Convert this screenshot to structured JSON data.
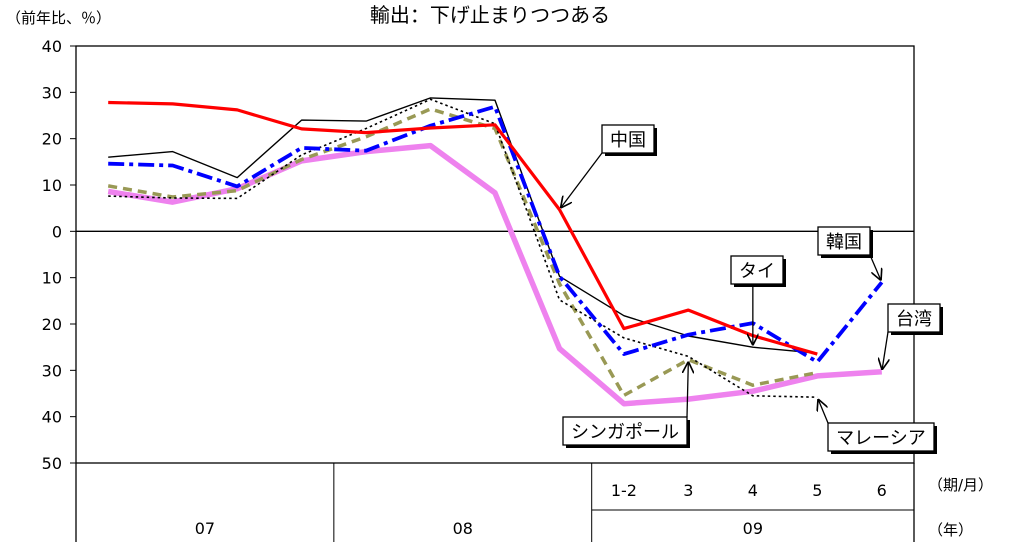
{
  "chart_data": {
    "type": "line",
    "title": "輸出：下げ止まりつつある",
    "ylabel": "（前年比、％）",
    "ylim": [
      -50,
      40
    ],
    "y_ticks": [
      {
        "value": 40,
        "label": "40"
      },
      {
        "value": 30,
        "label": "30"
      },
      {
        "value": 20,
        "label": "20"
      },
      {
        "value": 10,
        "label": "10"
      },
      {
        "value": 0,
        "label": "0"
      },
      {
        "value": -10,
        "label": "10"
      },
      {
        "value": -20,
        "label": "20"
      },
      {
        "value": -30,
        "label": "30"
      },
      {
        "value": -40,
        "label": "40"
      },
      {
        "value": -50,
        "label": "50"
      }
    ],
    "x_period_label": "（期/月）",
    "x_year_label": "（年）",
    "x": [
      "07Q1",
      "07Q2",
      "07Q3",
      "07Q4",
      "08Q1",
      "08Q2",
      "08Q3",
      "08Q4",
      "09/1-2",
      "09/3",
      "09/4",
      "09/5",
      "09/6"
    ],
    "month_labels": [
      {
        "x": "09/1-2",
        "label": "1-2"
      },
      {
        "x": "09/3",
        "label": "3"
      },
      {
        "x": "09/4",
        "label": "4"
      },
      {
        "x": "09/5",
        "label": "5"
      },
      {
        "x": "09/6",
        "label": "6"
      }
    ],
    "years": [
      {
        "label": "07",
        "from": "07Q1",
        "to": "07Q4"
      },
      {
        "label": "08",
        "from": "08Q1",
        "to": "08Q4"
      },
      {
        "label": "09",
        "from": "09/1-2",
        "to": "09/6"
      }
    ],
    "series": [
      {
        "name": "中国",
        "color": "#ff0000",
        "style": "solid",
        "values": [
          27.8,
          27.5,
          26.2,
          22.1,
          21.3,
          22.3,
          23.0,
          4.7,
          -21.0,
          -17.0,
          -22.5,
          -26.5,
          null
        ]
      },
      {
        "name": "タイ",
        "color": "#000000",
        "style": "solid-thin",
        "values": [
          16.0,
          17.2,
          11.6,
          24.0,
          23.8,
          28.8,
          28.3,
          -9.7,
          -18.2,
          -22.6,
          -25.0,
          -26.3,
          null
        ]
      },
      {
        "name": "韓国",
        "color": "#0000ff",
        "style": "dashdot",
        "values": [
          14.6,
          14.2,
          9.7,
          18.0,
          17.4,
          22.8,
          26.9,
          -9.7,
          -26.5,
          -22.3,
          -19.8,
          -28.2,
          -11.0
        ]
      },
      {
        "name": "台湾",
        "color": "#ee82ee",
        "style": "thick",
        "values": [
          8.6,
          6.3,
          9.2,
          15.2,
          17.2,
          18.5,
          8.3,
          -25.3,
          -37.2,
          -36.2,
          -34.5,
          -31.2,
          -30.3
        ]
      },
      {
        "name": "シンガポール",
        "color": "#999955",
        "style": "dashed",
        "values": [
          9.8,
          7.4,
          8.8,
          15.5,
          20.4,
          26.4,
          22.2,
          -11.3,
          -35.4,
          -27.7,
          -33.2,
          -30.5,
          null
        ]
      },
      {
        "name": "マレーシア",
        "color": "#000000",
        "style": "dotted",
        "values": [
          7.6,
          7.2,
          7.1,
          16.5,
          22.2,
          28.5,
          23.2,
          -14.8,
          -23.0,
          -27.0,
          -35.5,
          -35.8,
          null
        ]
      }
    ],
    "annotations": [
      {
        "text": "中国",
        "series": "中国",
        "at": "08Q4"
      },
      {
        "text": "タイ",
        "series": "タイ",
        "at": "09/4"
      },
      {
        "text": "韓国",
        "series": "韓国",
        "at": "09/6"
      },
      {
        "text": "台湾",
        "series": "台湾",
        "at": "09/6"
      },
      {
        "text": "シンガポール",
        "series": "シンガポール",
        "at": "09/3"
      },
      {
        "text": "マレーシア",
        "series": "マレーシア",
        "at": "09/5"
      }
    ],
    "grid": false,
    "legend": "none"
  }
}
